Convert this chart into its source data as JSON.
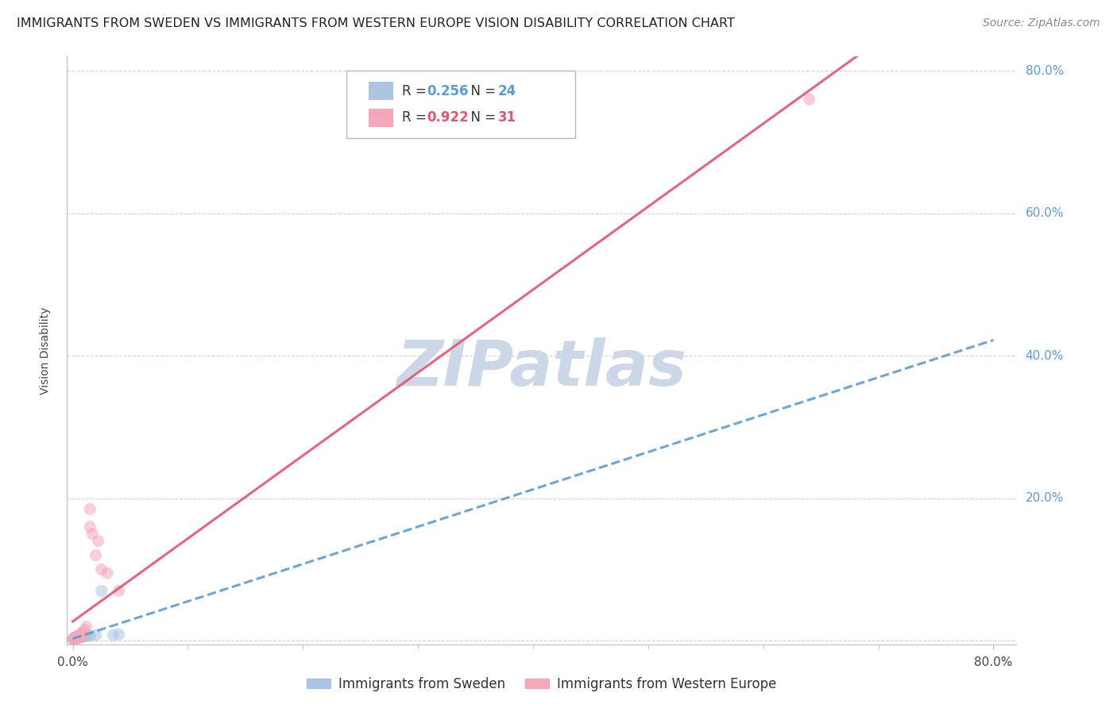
{
  "title": "IMMIGRANTS FROM SWEDEN VS IMMIGRANTS FROM WESTERN EUROPE VISION DISABILITY CORRELATION CHART",
  "source": "Source: ZipAtlas.com",
  "ylabel": "Vision Disability",
  "watermark": "ZIPatlas",
  "xlim": [
    -0.005,
    0.82
  ],
  "ylim": [
    -0.005,
    0.82
  ],
  "ytick_vals": [
    0.0,
    0.2,
    0.4,
    0.6,
    0.8
  ],
  "ytick_labels": [
    "",
    "20.0%",
    "40.0%",
    "60.0%",
    "80.0%"
  ],
  "xtick_vals": [
    0.0,
    0.8
  ],
  "xtick_labels": [
    "0.0%",
    "80.0%"
  ],
  "series1": {
    "label": "Immigrants from Sweden",
    "R": 0.256,
    "N": 24,
    "scatter_color": "#aac4e2",
    "line_color": "#5b9bd5",
    "line_style": "dashed",
    "x": [
      0.0005,
      0.001,
      0.001,
      0.002,
      0.002,
      0.003,
      0.003,
      0.003,
      0.004,
      0.004,
      0.005,
      0.005,
      0.006,
      0.007,
      0.008,
      0.009,
      0.01,
      0.011,
      0.013,
      0.015,
      0.02,
      0.025,
      0.035,
      0.04
    ],
    "y": [
      0.002,
      0.003,
      0.004,
      0.003,
      0.004,
      0.003,
      0.004,
      0.005,
      0.004,
      0.005,
      0.004,
      0.006,
      0.005,
      0.005,
      0.006,
      0.006,
      0.007,
      0.006,
      0.007,
      0.007,
      0.008,
      0.07,
      0.008,
      0.009
    ]
  },
  "series2": {
    "label": "Immigrants from Western Europe",
    "R": 0.922,
    "N": 31,
    "scatter_color": "#f4a7b9",
    "line_color": "#e05570",
    "line_style": "solid",
    "x": [
      0.0005,
      0.001,
      0.001,
      0.002,
      0.002,
      0.002,
      0.003,
      0.003,
      0.004,
      0.004,
      0.005,
      0.005,
      0.005,
      0.006,
      0.006,
      0.007,
      0.007,
      0.007,
      0.008,
      0.009,
      0.01,
      0.012,
      0.015,
      0.015,
      0.017,
      0.02,
      0.022,
      0.025,
      0.03,
      0.04,
      0.64
    ],
    "y": [
      0.002,
      0.002,
      0.003,
      0.003,
      0.004,
      0.005,
      0.003,
      0.005,
      0.004,
      0.006,
      0.004,
      0.006,
      0.007,
      0.005,
      0.007,
      0.006,
      0.008,
      0.01,
      0.009,
      0.012,
      0.015,
      0.02,
      0.16,
      0.185,
      0.15,
      0.12,
      0.14,
      0.1,
      0.095,
      0.07,
      0.76
    ]
  },
  "title_fontsize": 11.5,
  "axis_label_fontsize": 10,
  "tick_fontsize": 11,
  "legend_fontsize": 12,
  "source_fontsize": 10,
  "background_color": "#ffffff",
  "grid_color": "#c8c8c8",
  "watermark_color": "#ccd8e8",
  "scatter_alpha": 0.55,
  "scatter_size": 120
}
